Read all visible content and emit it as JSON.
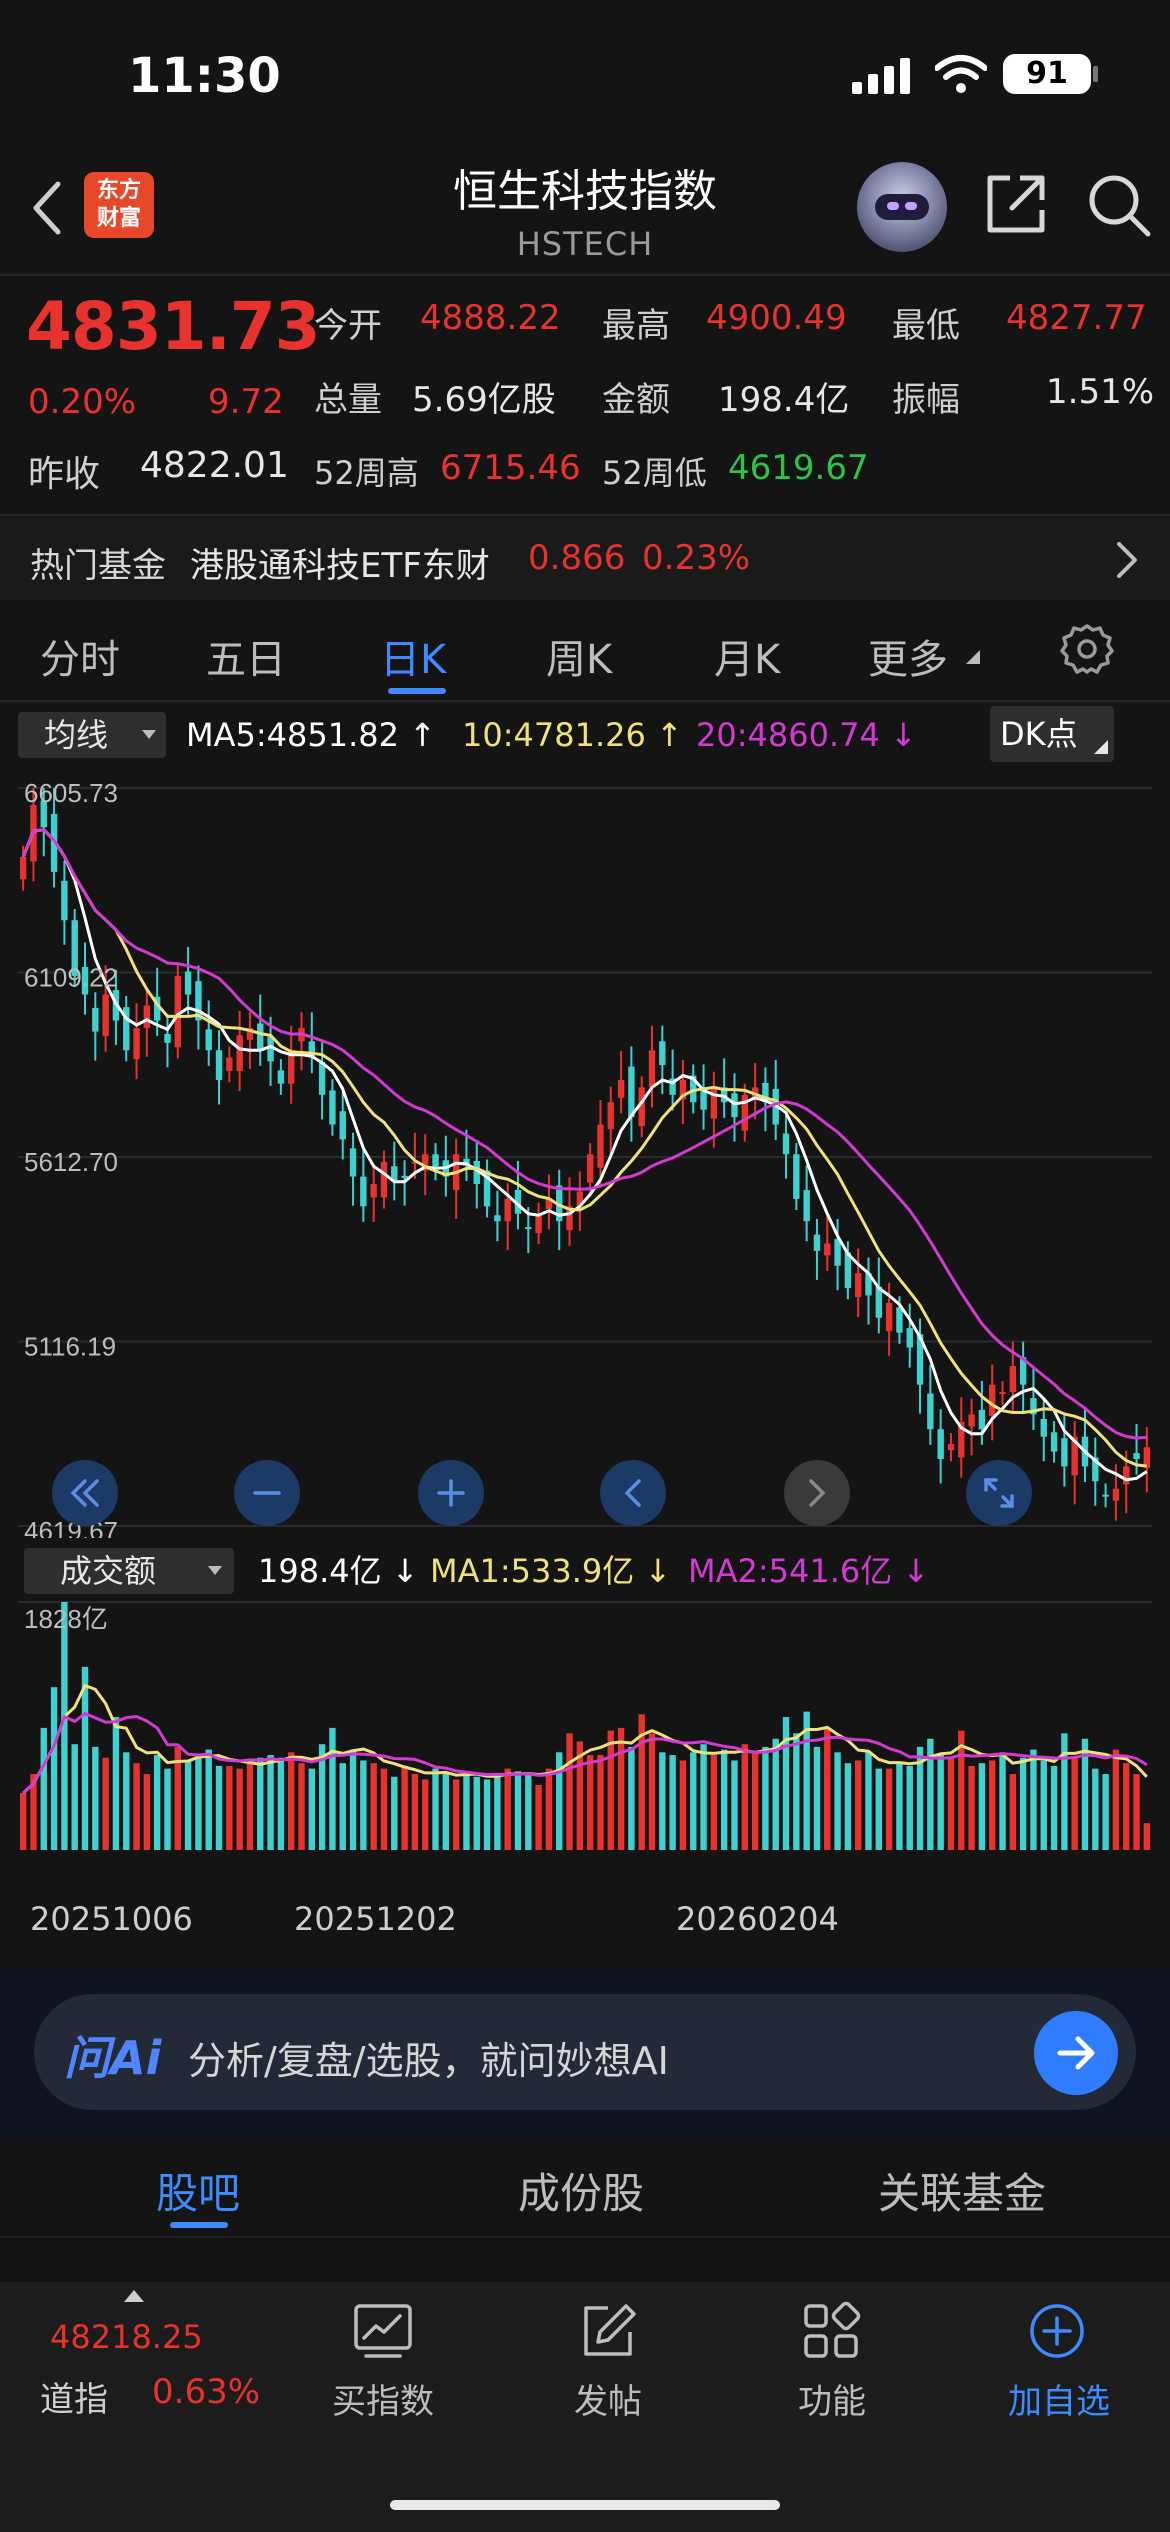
{
  "status_bar": {
    "time": "11:30",
    "battery": "91"
  },
  "header": {
    "logo_text_line1": "东方",
    "logo_text_line2": "财富",
    "title": "恒生科技指数",
    "subtitle": "HSTECH"
  },
  "quote": {
    "price": "4831.73",
    "change_pct": "0.20%",
    "change": "9.72",
    "prev_close_label": "昨收",
    "prev_close": "4822.01",
    "rows": [
      [
        {
          "label": "今开",
          "value": "4888.22",
          "color": "red"
        },
        {
          "label": "最高",
          "value": "4900.49",
          "color": "red"
        },
        {
          "label": "最低",
          "value": "4827.77",
          "color": "red"
        }
      ],
      [
        {
          "label": "总量",
          "value": "5.69亿股",
          "color": "white"
        },
        {
          "label": "金额",
          "value": "198.4亿",
          "color": "white"
        },
        {
          "label": "振幅",
          "value": "1.51%",
          "color": "white"
        }
      ],
      [
        {
          "label": "52周高",
          "value": "6715.46",
          "color": "red"
        },
        {
          "label": "52周低",
          "value": "4619.67",
          "color": "green"
        }
      ]
    ]
  },
  "hot_fund": {
    "label": "热门基金",
    "name": "港股通科技ETF东财",
    "price": "0.866",
    "pct": "0.23%"
  },
  "chart_tabs": {
    "items": [
      "分时",
      "五日",
      "日K",
      "周K",
      "月K",
      "更多"
    ],
    "active": "日K"
  },
  "ma_bar": {
    "selector": "均线",
    "ma5": "MA5:4851.82",
    "ma10": "10:4781.26",
    "ma20": "20:4860.74",
    "dk": "DK点"
  },
  "volume_bar": {
    "selector": "成交额",
    "value": "198.4亿",
    "ma1": "MA1:533.9亿",
    "ma2": "MA2:541.6亿"
  },
  "ask_ai": {
    "logo": "问Ai",
    "placeholder": "分析/复盘/选股，就问妙想AI"
  },
  "bottom_tabs": {
    "items": [
      "股吧",
      "成份股",
      "关联基金"
    ],
    "active": "股吧"
  },
  "bottom_nav": {
    "ticker_value": "48218.25",
    "ticker_name": "道指",
    "ticker_pct": "0.63%",
    "items": [
      "买指数",
      "发帖",
      "功能",
      "加自选"
    ]
  },
  "colors": {
    "up": "#e8322e",
    "down": "#3fd0d0",
    "accent": "#3d8bff",
    "ma5": "#ffffff",
    "ma10": "#f0e27a",
    "ma20": "#d23ad2"
  },
  "chart_data": [
    {
      "type": "candlestick",
      "title": "",
      "y_tick_labels": [
        "6605.73",
        "6109.22",
        "5612.70",
        "5116.19",
        "4619.67"
      ],
      "ylim": [
        4619.67,
        6605.73
      ],
      "x_tick_labels": [
        "20251006",
        "20251202",
        "20260204"
      ],
      "grid": true,
      "closes": [
        6420,
        6560,
        6500,
        6380,
        6250,
        6100,
        6050,
        5950,
        6050,
        5980,
        5900,
        5960,
        6020,
        5980,
        5920,
        6100,
        6050,
        5980,
        5900,
        5820,
        5880,
        5940,
        5960,
        5900,
        5870,
        5810,
        5900,
        5960,
        5880,
        5780,
        5700,
        5660,
        5560,
        5480,
        5540,
        5600,
        5550,
        5560,
        5600,
        5620,
        5580,
        5560,
        5620,
        5590,
        5540,
        5480,
        5440,
        5500,
        5460,
        5420,
        5460,
        5500,
        5440,
        5480,
        5520,
        5620,
        5700,
        5760,
        5820,
        5720,
        5800,
        5900,
        5860,
        5780,
        5820,
        5760,
        5740,
        5800,
        5760,
        5720,
        5780,
        5800,
        5760,
        5700,
        5620,
        5500,
        5440,
        5360,
        5380,
        5320,
        5260,
        5300,
        5240,
        5180,
        5220,
        5140,
        5100,
        5000,
        4880,
        4800,
        4840,
        4900,
        4920,
        4880,
        5000,
        4980,
        5050,
        5000,
        4920,
        4860,
        4820,
        4780,
        4860,
        4780,
        4740,
        4700,
        4720,
        4780,
        4800,
        4831.73
      ]
    },
    {
      "type": "bar",
      "title": "",
      "y_tick_labels": [
        "1828亿"
      ],
      "ylim": [
        0,
        1828
      ],
      "values": [
        420,
        560,
        900,
        1200,
        1828,
        780,
        1350,
        760,
        680,
        980,
        720,
        640,
        560,
        700,
        600,
        760,
        660,
        700,
        740,
        620,
        620,
        600,
        640,
        680,
        700,
        680,
        720,
        640,
        600,
        780,
        900,
        640,
        740,
        660,
        640,
        600,
        540,
        620,
        560,
        520,
        600,
        560,
        520,
        580,
        540,
        520,
        560,
        600,
        580,
        560,
        480,
        600,
        720,
        860,
        800,
        700,
        700,
        880,
        900,
        760,
        1000,
        860,
        720,
        700,
        660,
        720,
        780,
        700,
        740,
        660,
        780,
        720,
        760,
        820,
        980,
        860,
        1020,
        760,
        900,
        720,
        640,
        660,
        720,
        600,
        600,
        640,
        620,
        760,
        820,
        700,
        680,
        880,
        620,
        640,
        660,
        720,
        560,
        680,
        740,
        660,
        620,
        860,
        680,
        820,
        600,
        560,
        740,
        640,
        560,
        198.4
      ],
      "ma_lines": [
        "MA1",
        "MA2"
      ]
    }
  ]
}
